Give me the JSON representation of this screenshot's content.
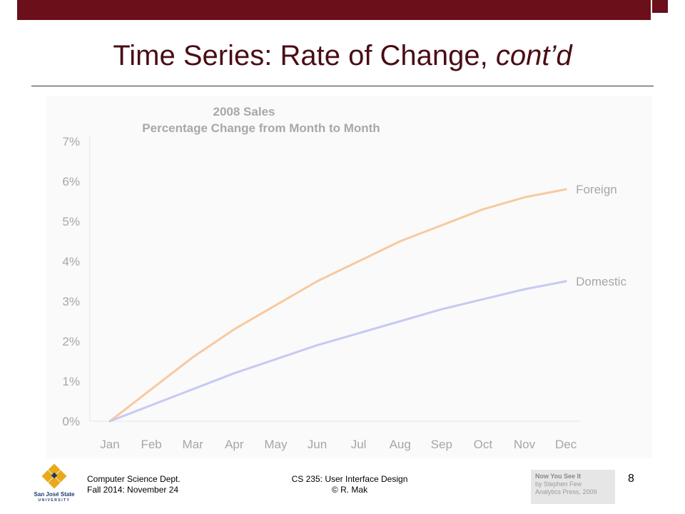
{
  "slide": {
    "title_main": "Time Series: Rate of Change, ",
    "title_italic": "cont’d",
    "page_number": "8"
  },
  "footer": {
    "dept": "Computer Science Dept.",
    "term": "Fall 2014: November 24",
    "course": "CS 235: User Interface Design",
    "author": "© R. Mak",
    "book_title": "Now You See It",
    "book_author": "by Stephen Few",
    "book_publisher": "Analytics Press, 2009",
    "logo_line1": "San José State",
    "logo_line2": "UNIVERSITY"
  },
  "colors": {
    "title": "#4a0d14",
    "bar": "#6b0f1a",
    "foreign": "#f7c9a0",
    "domestic": "#c7c9f2",
    "axis_text": "#a6a6a6"
  },
  "chart_data": {
    "type": "line",
    "title": "2008 Sales",
    "subtitle": "Percentage Change from Month to Month",
    "categories": [
      "Jan",
      "Feb",
      "Mar",
      "Apr",
      "May",
      "Jun",
      "Jul",
      "Aug",
      "Sep",
      "Oct",
      "Nov",
      "Dec"
    ],
    "yticks": [
      "0%",
      "1%",
      "2%",
      "3%",
      "4%",
      "5%",
      "6%",
      "7%"
    ],
    "ylim": [
      0,
      7
    ],
    "grid": false,
    "series": [
      {
        "name": "Foreign",
        "values": [
          0,
          0.8,
          1.6,
          2.3,
          2.9,
          3.5,
          4.0,
          4.5,
          4.9,
          5.3,
          5.6,
          5.8
        ]
      },
      {
        "name": "Domestic",
        "values": [
          0,
          0.4,
          0.8,
          1.2,
          1.55,
          1.9,
          2.2,
          2.5,
          2.8,
          3.05,
          3.3,
          3.5
        ]
      }
    ]
  }
}
